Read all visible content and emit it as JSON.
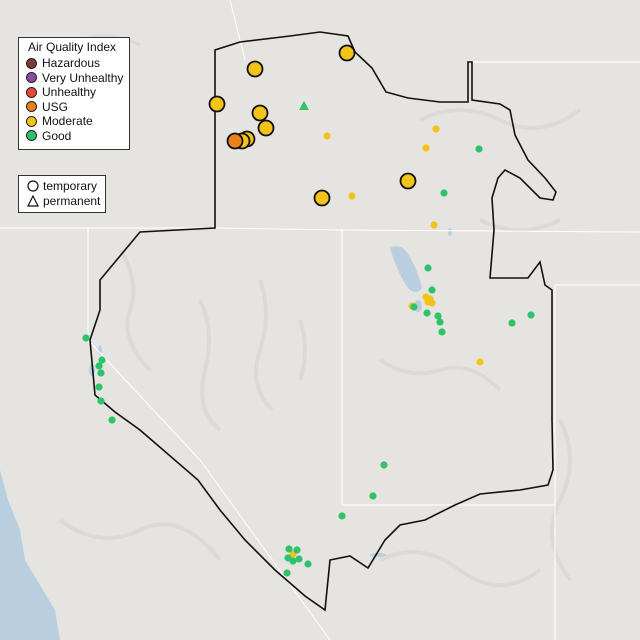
{
  "legend": {
    "title": "Air Quality Index",
    "categories": [
      {
        "label": "Hazardous",
        "color": "#7e3a36"
      },
      {
        "label": "Very Unhealthy",
        "color": "#8e4aa3"
      },
      {
        "label": "Unhealthy",
        "color": "#e24a33"
      },
      {
        "label": "USG",
        "color": "#e8821a"
      },
      {
        "label": "Moderate",
        "color": "#f2c318"
      },
      {
        "label": "Good",
        "color": "#2ec36b"
      }
    ],
    "monitor_types": [
      {
        "label": "temporary",
        "symbol": "circle-icon"
      },
      {
        "label": "permanent",
        "symbol": "triangle-icon"
      }
    ]
  },
  "map": {
    "land_color": "#e6e4e1",
    "water_color": "#b9cfe0",
    "boundary_color": "#111111"
  }
}
